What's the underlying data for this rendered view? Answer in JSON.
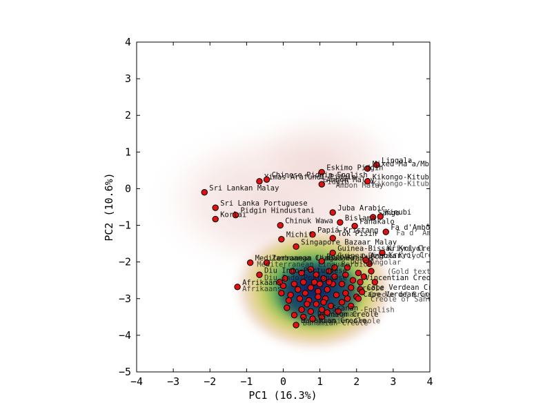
{
  "chart_data": {
    "type": "scatter",
    "xlabel": "PC1 (16.3%)",
    "ylabel": "PC2 (10.6%)",
    "xlim": [
      -4,
      4
    ],
    "ylim": [
      -5,
      4
    ],
    "xticks": [
      -4,
      -3,
      -2,
      -1,
      0,
      1,
      2,
      3,
      4
    ],
    "yticks": [
      -5,
      -4,
      -3,
      -2,
      -1,
      0,
      1,
      2,
      3,
      4
    ],
    "xtick_labels": [
      "−4",
      "−3",
      "−2",
      "−1",
      "0",
      "1",
      "2",
      "3",
      "4"
    ],
    "ytick_labels": [
      "−5",
      "−4",
      "−3",
      "−2",
      "−1",
      "0",
      "1",
      "2",
      "3",
      "4"
    ],
    "background": "kernel density estimate, dense region colored blue-green-yellow fading to light pink",
    "marker_color": "#dd1111",
    "marker_edge": "#000000",
    "labeled_points": [
      {
        "label": "Lingala",
        "x": 2.55,
        "y": 0.65
      },
      {
        "label": "Mixed Ma'a/Mbugu",
        "x": 2.3,
        "y": 0.55
      },
      {
        "label": "Eskimo Pidgin",
        "x": 1.05,
        "y": 0.45
      },
      {
        "label": "Yimas-Arafundi Pidgin",
        "x": -0.65,
        "y": 0.2
      },
      {
        "label": "Chinese Pidgin English",
        "x": -0.45,
        "y": 0.25
      },
      {
        "label": "Ambon Malay",
        "x": 1.05,
        "y": 0.12
      },
      {
        "label": "Kikongo-Kituba",
        "x": 2.3,
        "y": 0.2
      },
      {
        "label": "Sri Lankan Malay",
        "x": -2.15,
        "y": -0.1
      },
      {
        "label": "Sri Lanka Portuguese",
        "x": -1.85,
        "y": -0.52
      },
      {
        "label": "Pidgin Hindustani",
        "x": -1.3,
        "y": -0.72
      },
      {
        "label": "Korlai",
        "x": -1.85,
        "y": -0.83
      },
      {
        "label": "Juba Arabic",
        "x": 1.35,
        "y": -0.65
      },
      {
        "label": "Sango",
        "x": 2.45,
        "y": -0.78
      },
      {
        "label": "Kinubi",
        "x": 2.65,
        "y": -0.76
      },
      {
        "label": "Bislama",
        "x": 1.55,
        "y": -0.92
      },
      {
        "label": "Fanakalo",
        "x": 1.95,
        "y": -1.02
      },
      {
        "label": "Fa d'Ambô",
        "x": 2.8,
        "y": -1.18
      },
      {
        "label": "Chinuk Wawa",
        "x": -0.08,
        "y": -1.0
      },
      {
        "label": "Papiá Kristang",
        "x": 0.8,
        "y": -1.25
      },
      {
        "label": "Tok Pisin",
        "x": 1.35,
        "y": -1.35
      },
      {
        "label": "Michif",
        "x": -0.05,
        "y": -1.38
      },
      {
        "label": "Singapore Bazaar Malay",
        "x": 0.35,
        "y": -1.58
      },
      {
        "label": "Guinea-Bissau Kriyol",
        "x": 1.35,
        "y": -1.75
      },
      {
        "label": "Kriyol Creole",
        "x": 2.7,
        "y": -1.75
      },
      {
        "label": "Mediterranean Lingua Franca",
        "x": -0.9,
        "y": -2.02
      },
      {
        "label": "Zamboanga Chabacano",
        "x": -0.45,
        "y": -2.02
      },
      {
        "label": "Berbice Dutch",
        "x": 1.05,
        "y": -1.98
      },
      {
        "label": "Angolar",
        "x": 2.25,
        "y": -1.95
      },
      {
        "label": "Diu Indo-Portuguese",
        "x": -0.65,
        "y": -2.35
      },
      {
        "label": "Afrikaans",
        "x": -1.25,
        "y": -2.68
      },
      {
        "label": "Bahamian Creole",
        "x": 0.35,
        "y": -3.72
      },
      {
        "label": "Réunion Creole",
        "x": 0.8,
        "y": -3.55
      },
      {
        "label": "Cape Verdean Creole of Santiago",
        "x": 2.05,
        "y": -3.0
      },
      {
        "label": "Cape Verdean Creole of Brava",
        "x": 2.15,
        "y": -2.82
      },
      {
        "label": "Sranan",
        "x": 1.2,
        "y": -3.38
      },
      {
        "label": "Vincentian Creole",
        "x": 2.1,
        "y": -2.55
      }
    ],
    "visible_text_fragments": [
      "Ambon Malay",
      "Pidgin",
      "Kikongo-Kituba",
      "Fa d’ Ambô",
      "Guinea-Bissau Kriyol",
      "Angolar",
      "Berbice",
      "Dutch",
      "(Gold texts)",
      "Creole",
      "Creole of Brava",
      "Creole of Santiago",
      "-English",
      "Sranan",
      "Reunion Creole",
      "Bahamian Creole",
      "Mediterranean Lingua",
      "Diu Indo-Portuguese",
      "Afrikaans",
      "Kriyol Creole"
    ],
    "cluster_points": [
      [
        0.9,
        -2.35
      ],
      [
        1.1,
        -2.45
      ],
      [
        1.4,
        -2.4
      ],
      [
        1.7,
        -2.35
      ],
      [
        1.9,
        -2.5
      ],
      [
        2.05,
        -2.3
      ],
      [
        2.2,
        -2.4
      ],
      [
        0.55,
        -2.55
      ],
      [
        0.75,
        -2.7
      ],
      [
        0.95,
        -2.8
      ],
      [
        1.2,
        -2.75
      ],
      [
        1.45,
        -2.9
      ],
      [
        1.7,
        -2.85
      ],
      [
        2.0,
        -2.95
      ],
      [
        0.3,
        -2.6
      ],
      [
        0.2,
        -2.9
      ],
      [
        0.45,
        -3.0
      ],
      [
        0.7,
        -3.05
      ],
      [
        0.9,
        -3.15
      ],
      [
        1.15,
        -3.0
      ],
      [
        1.3,
        -3.2
      ],
      [
        1.6,
        -3.1
      ],
      [
        1.85,
        -3.2
      ],
      [
        0.0,
        -2.65
      ],
      [
        -0.05,
        -2.85
      ],
      [
        0.1,
        -3.25
      ],
      [
        0.5,
        -3.3
      ],
      [
        0.75,
        -3.35
      ],
      [
        1.05,
        -3.3
      ],
      [
        1.35,
        -2.6
      ],
      [
        1.6,
        -2.6
      ],
      [
        1.85,
        -2.7
      ],
      [
        2.1,
        -2.75
      ],
      [
        0.6,
        -2.85
      ],
      [
        0.85,
        -2.55
      ],
      [
        1.0,
        -2.6
      ],
      [
        1.25,
        -2.55
      ],
      [
        0.4,
        -2.75
      ],
      [
        0.15,
        -3.05
      ],
      [
        1.5,
        -3.35
      ],
      [
        1.75,
        -3.0
      ],
      [
        0.95,
        -2.95
      ],
      [
        1.1,
        -3.1
      ],
      [
        0.65,
        -3.15
      ],
      [
        0.3,
        -3.45
      ],
      [
        0.55,
        -3.5
      ],
      [
        1.05,
        -3.5
      ],
      [
        1.4,
        -2.15
      ],
      [
        1.75,
        -2.15
      ],
      [
        2.35,
        -2.05
      ],
      [
        2.4,
        -2.25
      ],
      [
        2.5,
        -2.55
      ],
      [
        0.5,
        -2.3
      ],
      [
        0.75,
        -2.2
      ],
      [
        0.05,
        -2.45
      ],
      [
        -0.1,
        -2.55
      ],
      [
        0.25,
        -2.25
      ],
      [
        1.25,
        -2.25
      ]
    ]
  }
}
